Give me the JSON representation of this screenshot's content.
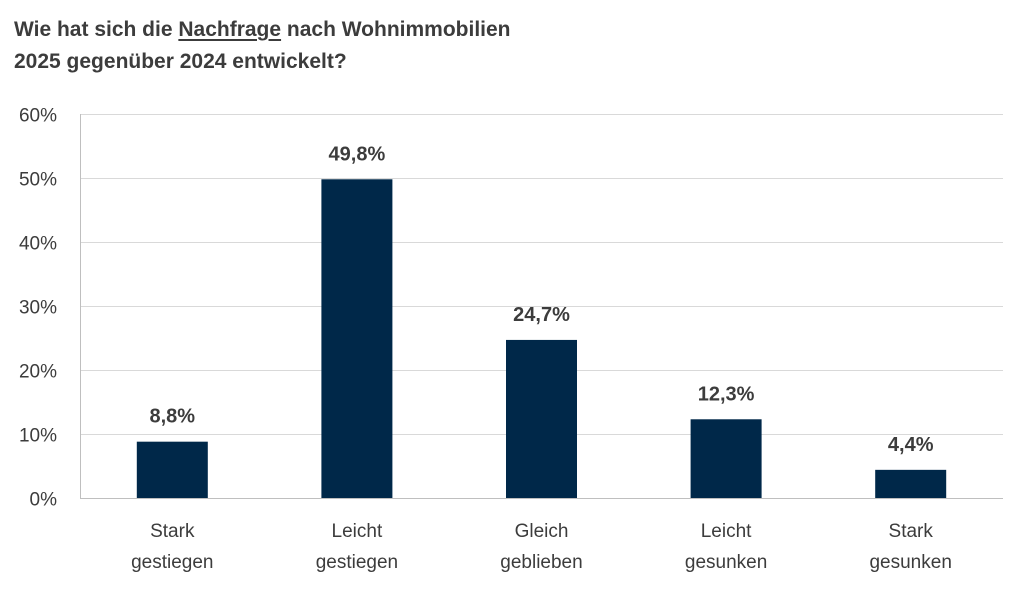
{
  "chart_data": {
    "type": "bar",
    "title": {
      "before": "Wie hat sich die ",
      "emphasis": "Nachfrage",
      "after_line1": " nach Wohnimmobilien",
      "line2": "2025 gegenüber 2024 entwickelt?"
    },
    "categories": [
      [
        "Stark",
        "gestiegen"
      ],
      [
        "Leicht",
        "gestiegen"
      ],
      [
        "Gleich",
        "geblieben"
      ],
      [
        "Leicht",
        "gesunken"
      ],
      [
        "Stark",
        "gesunken"
      ]
    ],
    "values": [
      8.8,
      49.8,
      24.7,
      12.3,
      4.4
    ],
    "data_labels": [
      "8,8%",
      "49,8%",
      "24,7%",
      "12,3%",
      "4,4%"
    ],
    "y_ticks": [
      0,
      10,
      20,
      30,
      40,
      50,
      60
    ],
    "y_tick_labels": [
      "0%",
      "10%",
      "20%",
      "30%",
      "40%",
      "50%",
      "60%"
    ],
    "ylim": [
      0,
      60
    ],
    "xlabel": "",
    "ylabel": "",
    "grid": true,
    "legend": "none",
    "colors": {
      "bar": "#002849",
      "grid": "#d9d9d9",
      "axis": "#bfbfbf",
      "text": "#3c3c3c"
    }
  }
}
